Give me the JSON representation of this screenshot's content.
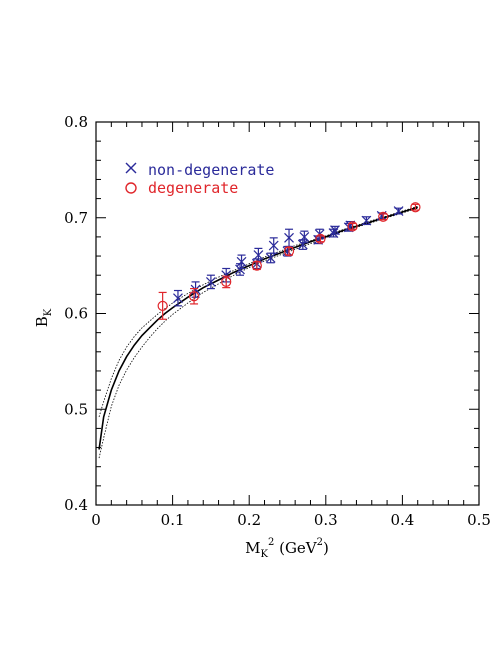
{
  "chart_data": {
    "type": "scatter",
    "title": "",
    "xlabel": {
      "main": "M",
      "sub": "K",
      "sup": "2",
      "units_open": " (GeV",
      "units_sup": "2",
      "units_close": ")"
    },
    "ylabel": {
      "main": "B",
      "sub": "K"
    },
    "xlim": [
      0,
      0.5
    ],
    "ylim": [
      0.4,
      0.8
    ],
    "x_ticks": [
      "0",
      "0.1",
      "0.2",
      "0.3",
      "0.4",
      "0.5"
    ],
    "y_ticks": [
      "0.4",
      "0.5",
      "0.6",
      "0.7",
      "0.8"
    ],
    "grid": false,
    "legend_position": "top-left",
    "colors": {
      "non_degenerate": "#2b2b9a",
      "degenerate": "#e0262b",
      "fit": "#000000"
    },
    "series": [
      {
        "name": "non-degenerate",
        "marker": "cross",
        "points": [
          {
            "x": 0.107,
            "y": 0.616,
            "err": 0.008
          },
          {
            "x": 0.13,
            "y": 0.625,
            "err": 0.008
          },
          {
            "x": 0.15,
            "y": 0.633,
            "err": 0.007
          },
          {
            "x": 0.17,
            "y": 0.64,
            "err": 0.007
          },
          {
            "x": 0.188,
            "y": 0.646,
            "err": 0.006
          },
          {
            "x": 0.19,
            "y": 0.654,
            "err": 0.007
          },
          {
            "x": 0.21,
            "y": 0.652,
            "err": 0.005
          },
          {
            "x": 0.212,
            "y": 0.661,
            "err": 0.007
          },
          {
            "x": 0.228,
            "y": 0.658,
            "err": 0.005
          },
          {
            "x": 0.232,
            "y": 0.671,
            "err": 0.008
          },
          {
            "x": 0.25,
            "y": 0.665,
            "err": 0.005
          },
          {
            "x": 0.252,
            "y": 0.679,
            "err": 0.009
          },
          {
            "x": 0.27,
            "y": 0.672,
            "err": 0.005
          },
          {
            "x": 0.272,
            "y": 0.68,
            "err": 0.006
          },
          {
            "x": 0.29,
            "y": 0.677,
            "err": 0.004
          },
          {
            "x": 0.292,
            "y": 0.683,
            "err": 0.005
          },
          {
            "x": 0.31,
            "y": 0.684,
            "err": 0.004
          },
          {
            "x": 0.312,
            "y": 0.687,
            "err": 0.004
          },
          {
            "x": 0.33,
            "y": 0.69,
            "err": 0.004
          },
          {
            "x": 0.332,
            "y": 0.692,
            "err": 0.004
          },
          {
            "x": 0.353,
            "y": 0.697,
            "err": 0.004
          },
          {
            "x": 0.373,
            "y": 0.702,
            "err": 0.003
          },
          {
            "x": 0.395,
            "y": 0.707,
            "err": 0.003
          }
        ]
      },
      {
        "name": "degenerate",
        "marker": "circle",
        "points": [
          {
            "x": 0.087,
            "y": 0.608,
            "err": 0.014
          },
          {
            "x": 0.128,
            "y": 0.618,
            "err": 0.008
          },
          {
            "x": 0.17,
            "y": 0.633,
            "err": 0.006
          },
          {
            "x": 0.21,
            "y": 0.65,
            "err": 0.004
          },
          {
            "x": 0.252,
            "y": 0.665,
            "err": 0.004
          },
          {
            "x": 0.293,
            "y": 0.678,
            "err": 0.003
          },
          {
            "x": 0.335,
            "y": 0.691,
            "err": 0.003
          },
          {
            "x": 0.375,
            "y": 0.701,
            "err": 0.003
          },
          {
            "x": 0.417,
            "y": 0.711,
            "err": 0.003
          }
        ]
      }
    ],
    "fit_curve": {
      "x": [
        0.004,
        0.01,
        0.02,
        0.03,
        0.04,
        0.05,
        0.06,
        0.07,
        0.08,
        0.09,
        0.1,
        0.12,
        0.14,
        0.16,
        0.18,
        0.2,
        0.22,
        0.24,
        0.26,
        0.28,
        0.3,
        0.32,
        0.34,
        0.36,
        0.38,
        0.4,
        0.42
      ],
      "y": [
        0.458,
        0.492,
        0.52,
        0.54,
        0.555,
        0.567,
        0.577,
        0.585,
        0.593,
        0.6,
        0.606,
        0.617,
        0.627,
        0.635,
        0.643,
        0.65,
        0.657,
        0.663,
        0.669,
        0.675,
        0.68,
        0.686,
        0.691,
        0.696,
        0.701,
        0.706,
        0.711
      ],
      "upper": [
        0.492,
        0.508,
        0.532,
        0.551,
        0.565,
        0.576,
        0.585,
        0.592,
        0.599,
        0.605,
        0.611,
        0.621,
        0.63,
        0.638,
        0.645,
        0.652,
        0.659,
        0.665,
        0.671,
        0.676,
        0.681,
        0.687,
        0.692,
        0.697,
        0.702,
        0.707,
        0.712
      ],
      "lower": [
        0.449,
        0.47,
        0.503,
        0.525,
        0.541,
        0.554,
        0.565,
        0.575,
        0.584,
        0.592,
        0.599,
        0.611,
        0.622,
        0.631,
        0.64,
        0.648,
        0.655,
        0.661,
        0.667,
        0.673,
        0.679,
        0.685,
        0.69,
        0.695,
        0.7,
        0.705,
        0.71
      ]
    }
  }
}
